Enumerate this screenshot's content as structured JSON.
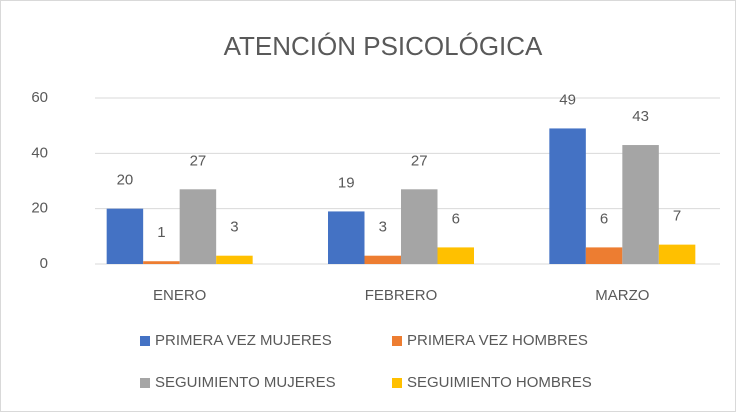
{
  "chart_data": {
    "type": "bar",
    "title": "ATENCIÓN PSICOLÓGICA",
    "categories": [
      "ENERO",
      "FEBRERO",
      "MARZO"
    ],
    "series": [
      {
        "name": "PRIMERA VEZ MUJERES",
        "color": "#4472c4",
        "values": [
          20,
          19,
          49
        ]
      },
      {
        "name": "PRIMERA VEZ HOMBRES",
        "color": "#ed7d31",
        "values": [
          1,
          3,
          6
        ]
      },
      {
        "name": "SEGUIMIENTO MUJERES",
        "color": "#a5a5a5",
        "values": [
          27,
          27,
          43
        ]
      },
      {
        "name": "SEGUIMIENTO HOMBRES",
        "color": "#ffc000",
        "values": [
          3,
          6,
          7
        ]
      }
    ],
    "ylim": [
      0,
      60
    ],
    "yticks": [
      0,
      20,
      40,
      60
    ],
    "grid": true,
    "legend": "bottom"
  }
}
